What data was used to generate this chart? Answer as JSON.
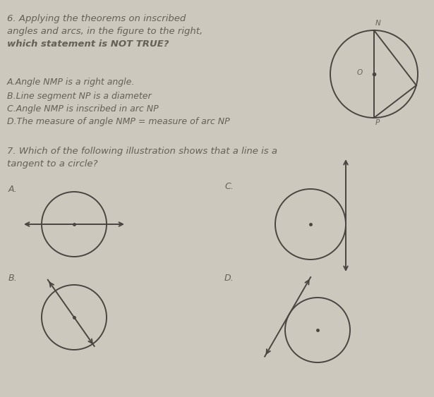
{
  "bg_color": "#ccc8be",
  "text_color": "#666055",
  "q6_line1": "6. Applying the theorems on inscribed",
  "q6_line2": "angles and arcs, in the figure to the right,",
  "q6_line3": "which statement is NOT TRUE?",
  "q6_options": [
    "A.Angle NMP is a right angle.",
    "B.Line segment NP is a diameter",
    "C.Angle NMP is inscribed in arc NP",
    "D.The measure of angle NMP = measure of arc NP"
  ],
  "q7_line1": "7. Which of the following illustration shows that a line is a",
  "q7_line2": "tangent to a circle?",
  "circle_color": "#4a4540",
  "font_size_q": 9.5,
  "font_size_opt": 9.0
}
